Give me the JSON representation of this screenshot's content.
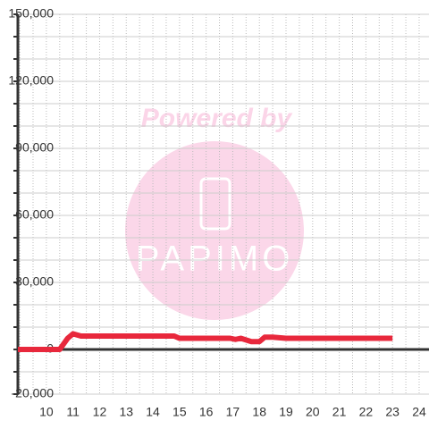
{
  "chart_data": {
    "type": "line",
    "x": [
      8.93,
      10.5,
      10.8,
      11,
      11.3,
      14.8,
      15,
      16.9,
      17.1,
      17.3,
      17.7,
      18,
      18.2,
      18.5,
      19,
      23
    ],
    "series": [
      {
        "color": "#e8283c",
        "values": [
          0,
          0,
          5000,
          7000,
          6000,
          6000,
          5000,
          5000,
          4500,
          5000,
          3500,
          3500,
          5500,
          5500,
          5000,
          5000
        ]
      }
    ],
    "xlim": [
      8.93,
      24.37
    ],
    "xticks": [
      10,
      11,
      12,
      13,
      14,
      15,
      16,
      17,
      18,
      19,
      20,
      21,
      22,
      23,
      24
    ],
    "xgrid": [
      9,
      9.5,
      10,
      10.5,
      11,
      11.5,
      12,
      12.5,
      13,
      13.5,
      14,
      14.5,
      15,
      15.5,
      16,
      16.5,
      17,
      17.5,
      18,
      18.5,
      19,
      19.5,
      20,
      20.5,
      21,
      21.5,
      22,
      22.5,
      23,
      23.5,
      24
    ],
    "ylim": [
      -20000,
      150000
    ],
    "yticks": [
      {
        "value": -20000,
        "label": "-20,000"
      },
      0,
      {
        "value": 30000,
        "label": "30,000"
      },
      {
        "value": 60000,
        "label": "60,000"
      },
      {
        "value": 90000,
        "label": "90,000"
      },
      {
        "value": 120000,
        "label": "120,000"
      },
      {
        "value": 150000,
        "label": "150,000"
      }
    ],
    "ygrid": [
      -20000,
      -10000,
      0,
      10000,
      20000,
      30000,
      40000,
      50000,
      60000,
      70000,
      80000,
      90000,
      100000,
      110000,
      120000,
      130000,
      140000,
      150000
    ],
    "grid": true,
    "watermark": {
      "top": "Powered by",
      "logo": "PAPIMO"
    }
  }
}
